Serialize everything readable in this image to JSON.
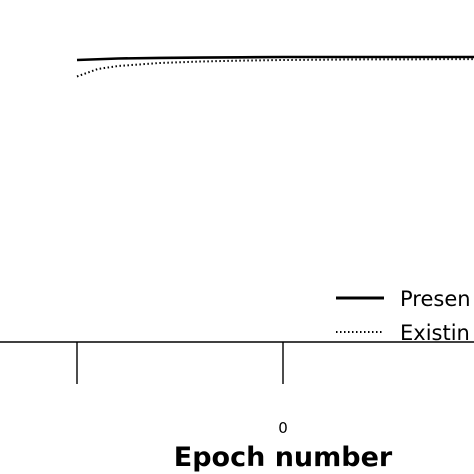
{
  "chart_data": {
    "type": "line",
    "xlabel": "Epoch number",
    "ylabel": "",
    "x_ticks": [
      "",
      "0",
      ""
    ],
    "grid": false,
    "legend_position": "bottom-right",
    "series": [
      {
        "name": "Presen",
        "style": "solid",
        "color": "#000000",
        "x": [
          -100,
          -80,
          -60,
          -40,
          -20,
          0,
          20,
          40,
          60,
          80,
          100
        ],
        "y": [
          0.985,
          0.99,
          0.992,
          0.993,
          0.994,
          0.995,
          0.995,
          0.995,
          0.995,
          0.995,
          0.995
        ]
      },
      {
        "name": "Existin",
        "style": "dotted",
        "color": "#000000",
        "x": [
          -100,
          -90,
          -80,
          -60,
          -40,
          -20,
          0,
          20,
          40,
          60,
          80,
          100
        ],
        "y": [
          0.93,
          0.955,
          0.965,
          0.975,
          0.98,
          0.983,
          0.985,
          0.986,
          0.987,
          0.987,
          0.988,
          0.988
        ]
      }
    ]
  }
}
